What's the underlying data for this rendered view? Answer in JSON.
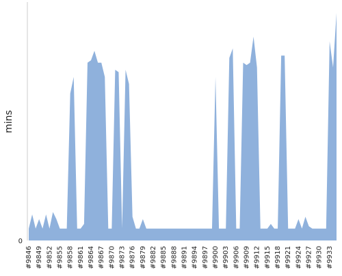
{
  "chart_data": {
    "type": "area",
    "y_label": "mins",
    "color": "#8fb1dc",
    "categories": [
      "#9846",
      null,
      null,
      "#9849",
      null,
      null,
      "#9852",
      null,
      null,
      "#9855",
      null,
      null,
      "#9858",
      null,
      null,
      "#9861",
      null,
      null,
      "#9864",
      null,
      null,
      "#9867",
      null,
      null,
      "#9870",
      null,
      null,
      "#9873",
      null,
      null,
      "#9876",
      null,
      null,
      "#9879",
      null,
      null,
      "#9882",
      null,
      null,
      "#9885",
      null,
      null,
      "#9888",
      null,
      null,
      "#9891",
      null,
      null,
      "#9894",
      null,
      null,
      "#9897",
      null,
      null,
      "#9900",
      null,
      null,
      "#9903",
      null,
      null,
      "#9906",
      null,
      null,
      "#9909",
      null,
      null,
      "#9912",
      null,
      null,
      "#9915",
      null,
      null,
      "#9918",
      null,
      null,
      "#9921",
      null,
      null,
      "#9924",
      null,
      null,
      "#9927",
      null,
      null,
      "#9930",
      null,
      null,
      "#9933",
      null,
      null
    ],
    "values": [
      5,
      11,
      5,
      9,
      5,
      11,
      5,
      12,
      9,
      5,
      5,
      5,
      62,
      69,
      5,
      5,
      7,
      75,
      76,
      80,
      75,
      75,
      69,
      5,
      5,
      72,
      71,
      5,
      72,
      66,
      10,
      5,
      5,
      9,
      5,
      5,
      5,
      5,
      5,
      5,
      5,
      5,
      5,
      5,
      5,
      5,
      5,
      5,
      5,
      5,
      5,
      5,
      5,
      5,
      69,
      5,
      5,
      5,
      77,
      81,
      5,
      5,
      75,
      74,
      75,
      86,
      73,
      5,
      5,
      5,
      7,
      5,
      5,
      78,
      78,
      5,
      5,
      5,
      9,
      5,
      10,
      6,
      5,
      5,
      5,
      5,
      5,
      84,
      73,
      96
    ],
    "ylim": [
      0,
      100
    ],
    "yticks": [
      0
    ]
  }
}
